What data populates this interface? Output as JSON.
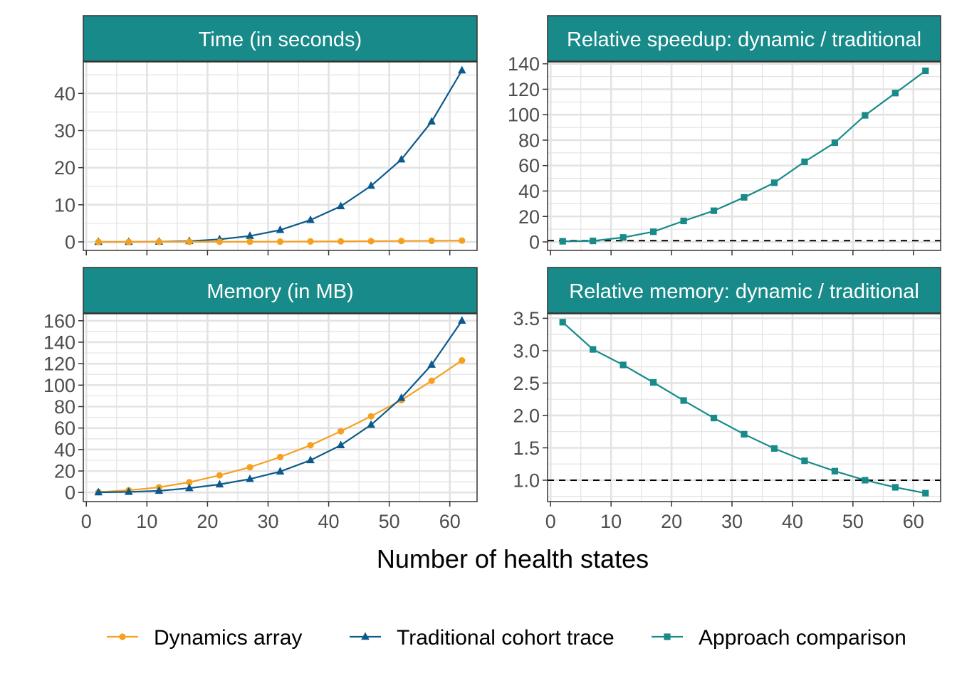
{
  "colors": {
    "dynamics": "#F5A01F",
    "traditional": "#0C5A8C",
    "comparison": "#178A89",
    "strip_fill": "#178A89",
    "grid": "#E3E3E3",
    "reference_line": "#000000"
  },
  "xlabel": "Number of health states",
  "legend": {
    "placement": "bottom",
    "items": [
      {
        "label": "Dynamics array",
        "series": "dynamics",
        "marker": "circle"
      },
      {
        "label": "Traditional cohort trace",
        "series": "traditional",
        "marker": "triangle"
      },
      {
        "label": "Approach comparison",
        "series": "comparison",
        "marker": "square"
      }
    ]
  },
  "chart_data": [
    {
      "type": "line",
      "title": "Time (in seconds)",
      "x": [
        2,
        7,
        12,
        17,
        22,
        27,
        32,
        37,
        42,
        47,
        52,
        57,
        62
      ],
      "xlim": [
        -0.5,
        64.5
      ],
      "ylim": [
        -2.3,
        48.5
      ],
      "x_ticks": [
        0,
        10,
        20,
        30,
        40,
        50,
        60
      ],
      "y_ticks": [
        0,
        10,
        20,
        30,
        40
      ],
      "show_x_tick_labels": false,
      "grid": true,
      "series": [
        {
          "name": "Traditional cohort trace",
          "key": "traditional",
          "marker": "triangle",
          "values": [
            0.0,
            0.0,
            0.05,
            0.2,
            0.7,
            1.6,
            3.2,
            5.9,
            9.6,
            15.1,
            22.2,
            32.4,
            46.2
          ]
        },
        {
          "name": "Dynamics array",
          "key": "dynamics",
          "marker": "circle",
          "values": [
            0.0,
            0.0,
            0.02,
            0.03,
            0.05,
            0.06,
            0.08,
            0.12,
            0.15,
            0.2,
            0.25,
            0.3,
            0.35
          ]
        }
      ]
    },
    {
      "type": "line",
      "title": "Relative speedup: dynamic / traditional",
      "x": [
        2,
        7,
        12,
        17,
        22,
        27,
        32,
        37,
        42,
        47,
        52,
        57,
        62
      ],
      "xlim": [
        -0.5,
        64.5
      ],
      "ylim": [
        -6.7,
        141.5
      ],
      "x_ticks": [
        0,
        10,
        20,
        30,
        40,
        50,
        60
      ],
      "y_ticks": [
        0,
        20,
        40,
        60,
        80,
        100,
        120,
        140
      ],
      "show_x_tick_labels": false,
      "reference_line": 1,
      "grid": true,
      "series": [
        {
          "name": "Approach comparison",
          "key": "comparison",
          "marker": "square",
          "values": [
            0.5,
            0.8,
            3.5,
            8.0,
            16.5,
            24.5,
            35.0,
            46.5,
            63.0,
            78.0,
            99.5,
            117.0,
            134.5
          ]
        }
      ]
    },
    {
      "type": "line",
      "title": "Memory (in MB)",
      "x": [
        2,
        7,
        12,
        17,
        22,
        27,
        32,
        37,
        42,
        47,
        52,
        57,
        62
      ],
      "xlim": [
        -0.5,
        64.5
      ],
      "ylim": [
        -8.5,
        166.5
      ],
      "x_ticks": [
        0,
        10,
        20,
        30,
        40,
        50,
        60
      ],
      "y_ticks": [
        0,
        20,
        40,
        60,
        80,
        100,
        120,
        140,
        160
      ],
      "show_x_tick_labels": true,
      "grid": true,
      "series": [
        {
          "name": "Dynamics array",
          "key": "dynamics",
          "marker": "circle",
          "values": [
            0.3,
            2.0,
            4.8,
            9.5,
            16.0,
            23.5,
            33.0,
            44.0,
            57.0,
            71.0,
            86.0,
            104.0,
            123.0
          ]
        },
        {
          "name": "Traditional cohort trace",
          "key": "traditional",
          "marker": "triangle",
          "values": [
            0.1,
            0.5,
            1.5,
            4.0,
            7.5,
            12.5,
            19.5,
            30.0,
            44.0,
            63.0,
            88.0,
            119.0,
            160.0
          ]
        }
      ]
    },
    {
      "type": "line",
      "title": "Relative memory: dynamic / traditional",
      "x": [
        2,
        7,
        12,
        17,
        22,
        27,
        32,
        37,
        42,
        47,
        52,
        57,
        62
      ],
      "xlim": [
        -0.5,
        64.5
      ],
      "ylim": [
        0.67,
        3.57
      ],
      "x_ticks": [
        0,
        10,
        20,
        30,
        40,
        50,
        60
      ],
      "y_ticks": [
        1.0,
        1.5,
        2.0,
        2.5,
        3.0,
        3.5
      ],
      "y_tick_labels": [
        "1.0",
        "1.5",
        "2.0",
        "2.5",
        "3.0",
        "3.5"
      ],
      "show_x_tick_labels": true,
      "reference_line": 1,
      "grid": true,
      "series": [
        {
          "name": "Approach comparison",
          "key": "comparison",
          "marker": "square",
          "values": [
            3.44,
            3.02,
            2.78,
            2.51,
            2.23,
            1.96,
            1.71,
            1.49,
            1.3,
            1.14,
            1.0,
            0.89,
            0.8
          ]
        }
      ]
    }
  ]
}
